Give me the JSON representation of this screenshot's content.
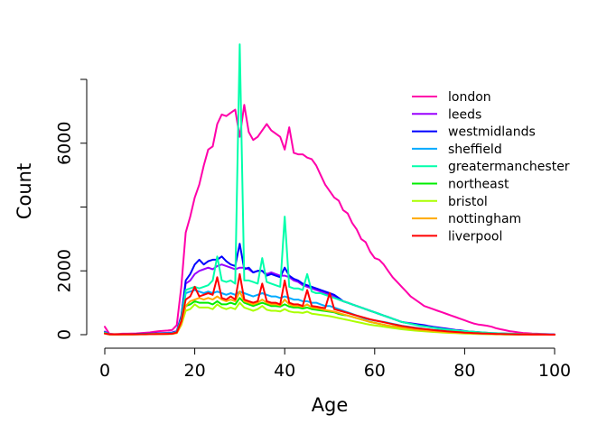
{
  "chart_data": {
    "type": "line",
    "xlabel": "Age",
    "ylabel": "Count",
    "xlim": [
      0,
      100
    ],
    "ylim": [
      0,
      8000
    ],
    "xticks": [
      0,
      20,
      40,
      60,
      80,
      100
    ],
    "yticks": [
      0,
      2000,
      4000,
      6000,
      8000
    ],
    "ytick_labels": [
      "0",
      "2000",
      "",
      "6000",
      ""
    ],
    "grid": false,
    "legend_position": "top-right",
    "x": [
      0,
      1,
      2,
      3,
      4,
      5,
      6,
      7,
      8,
      9,
      10,
      11,
      12,
      13,
      14,
      15,
      16,
      17,
      18,
      19,
      20,
      21,
      22,
      23,
      24,
      25,
      26,
      27,
      28,
      29,
      30,
      31,
      32,
      33,
      34,
      35,
      36,
      37,
      38,
      39,
      40,
      41,
      42,
      43,
      44,
      45,
      46,
      47,
      48,
      49,
      50,
      51,
      52,
      53,
      54,
      55,
      56,
      57,
      58,
      59,
      60,
      61,
      62,
      63,
      64,
      65,
      66,
      67,
      68,
      69,
      70,
      71,
      72,
      73,
      74,
      75,
      76,
      77,
      78,
      79,
      80,
      81,
      82,
      83,
      84,
      85,
      86,
      87,
      88,
      89,
      90,
      91,
      92,
      93,
      94,
      95,
      96,
      97,
      98,
      99,
      100
    ],
    "series": [
      {
        "name": "london",
        "color": "#ff00aa",
        "values": [
          250,
          30,
          20,
          25,
          30,
          30,
          35,
          40,
          50,
          60,
          70,
          90,
          110,
          120,
          130,
          150,
          300,
          1500,
          3200,
          3700,
          4300,
          4700,
          5300,
          5800,
          5900,
          6600,
          6900,
          6850,
          6950,
          7050,
          6200,
          7200,
          6350,
          6100,
          6200,
          6400,
          6600,
          6400,
          6300,
          6200,
          5800,
          6500,
          5700,
          5650,
          5650,
          5550,
          5500,
          5300,
          5000,
          4700,
          4500,
          4300,
          4200,
          3900,
          3800,
          3500,
          3300,
          3000,
          2900,
          2600,
          2400,
          2350,
          2200,
          2000,
          1800,
          1650,
          1500,
          1350,
          1200,
          1100,
          1000,
          900,
          850,
          800,
          750,
          700,
          650,
          600,
          550,
          500,
          450,
          400,
          350,
          320,
          300,
          280,
          250,
          200,
          170,
          140,
          110,
          90,
          70,
          55,
          45,
          35,
          30,
          25,
          20,
          15,
          10
        ]
      },
      {
        "name": "leeds",
        "color": "#9900ff",
        "values": [
          100,
          20,
          15,
          15,
          20,
          20,
          20,
          25,
          30,
          30,
          35,
          40,
          50,
          55,
          60,
          70,
          120,
          600,
          1600,
          1700,
          1900,
          2000,
          2050,
          2100,
          2050,
          2150,
          2200,
          2150,
          2100,
          2050,
          2100,
          2100,
          2050,
          1950,
          2000,
          2000,
          1900,
          1950,
          1900,
          1850,
          1850,
          1800,
          1700,
          1650,
          1550,
          1500,
          1450,
          1400,
          1350,
          1300,
          1250,
          1200,
          1100,
          1050,
          1000,
          950,
          900,
          850,
          800,
          750,
          700,
          650,
          600,
          550,
          500,
          450,
          400,
          380,
          360,
          340,
          320,
          300,
          270,
          250,
          230,
          210,
          190,
          170,
          150,
          140,
          120,
          100,
          90,
          80,
          70,
          60,
          50,
          45,
          40,
          35,
          30,
          25,
          20,
          15,
          12,
          10,
          8,
          6,
          5,
          4,
          3
        ]
      },
      {
        "name": "westmidlands",
        "color": "#0000ff",
        "values": [
          80,
          15,
          12,
          12,
          15,
          15,
          15,
          20,
          25,
          25,
          30,
          35,
          40,
          45,
          50,
          60,
          100,
          550,
          1700,
          1900,
          2200,
          2350,
          2200,
          2300,
          2350,
          2350,
          2450,
          2300,
          2200,
          2150,
          2850,
          2050,
          2100,
          1950,
          2000,
          2000,
          1850,
          1900,
          1850,
          1800,
          2100,
          1850,
          1750,
          1700,
          1600,
          1550,
          1500,
          1450,
          1400,
          1350,
          1300,
          1250,
          1150,
          1050,
          1000,
          950,
          900,
          850,
          800,
          750,
          700,
          650,
          600,
          550,
          500,
          450,
          400,
          370,
          350,
          330,
          310,
          290,
          260,
          240,
          220,
          200,
          180,
          160,
          140,
          130,
          110,
          95,
          85,
          75,
          65,
          55,
          45,
          40,
          35,
          30,
          25,
          20,
          16,
          12,
          10,
          8,
          6,
          5,
          4,
          3,
          2
        ]
      },
      {
        "name": "sheffield",
        "color": "#00aaff",
        "values": [
          60,
          12,
          10,
          10,
          12,
          12,
          12,
          15,
          18,
          18,
          20,
          25,
          30,
          35,
          40,
          45,
          80,
          450,
          1300,
          1350,
          1400,
          1350,
          1300,
          1350,
          1300,
          1350,
          1300,
          1250,
          1300,
          1250,
          1350,
          1300,
          1250,
          1200,
          1250,
          1300,
          1250,
          1200,
          1200,
          1150,
          1200,
          1150,
          1100,
          1100,
          1050,
          1050,
          1000,
          1000,
          950,
          900,
          900,
          850,
          800,
          750,
          700,
          650,
          600,
          550,
          500,
          470,
          450,
          420,
          400,
          370,
          340,
          310,
          280,
          260,
          240,
          220,
          200,
          180,
          165,
          150,
          140,
          130,
          120,
          110,
          100,
          90,
          80,
          70,
          60,
          55,
          50,
          45,
          40,
          35,
          30,
          25,
          20,
          15,
          12,
          10,
          8,
          6,
          5,
          4,
          3,
          2,
          1
        ]
      },
      {
        "name": "greatermanchester",
        "color": "#00ffaa",
        "values": [
          70,
          12,
          10,
          10,
          12,
          12,
          12,
          15,
          18,
          18,
          20,
          25,
          30,
          35,
          40,
          45,
          90,
          500,
          1400,
          1450,
          1500,
          1450,
          1500,
          1550,
          1700,
          2450,
          1700,
          1650,
          1700,
          1600,
          9100,
          1700,
          1700,
          1650,
          1600,
          2400,
          1650,
          1600,
          1550,
          1500,
          3700,
          1500,
          1450,
          1450,
          1400,
          1900,
          1350,
          1300,
          1300,
          1250,
          1200,
          1150,
          1100,
          1050,
          1000,
          950,
          900,
          850,
          800,
          750,
          700,
          650,
          600,
          550,
          500,
          450,
          400,
          370,
          340,
          310,
          280,
          260,
          240,
          220,
          200,
          180,
          165,
          150,
          135,
          120,
          110,
          100,
          90,
          80,
          70,
          60,
          50,
          45,
          40,
          35,
          30,
          25,
          20,
          15,
          12,
          10,
          8,
          6,
          5,
          4,
          3
        ]
      },
      {
        "name": "northeast",
        "color": "#00ee00",
        "values": [
          40,
          10,
          8,
          8,
          10,
          10,
          10,
          12,
          14,
          14,
          16,
          18,
          20,
          22,
          25,
          30,
          60,
          350,
          900,
          950,
          1050,
          1000,
          1000,
          1000,
          950,
          1050,
          950,
          950,
          1000,
          950,
          1150,
          1000,
          950,
          900,
          950,
          1000,
          950,
          900,
          900,
          880,
          950,
          880,
          850,
          850,
          820,
          850,
          800,
          780,
          760,
          740,
          720,
          700,
          650,
          620,
          600,
          560,
          520,
          480,
          440,
          400,
          370,
          340,
          310,
          280,
          260,
          240,
          220,
          200,
          180,
          165,
          150,
          135,
          120,
          110,
          100,
          90,
          80,
          72,
          65,
          58,
          50,
          45,
          40,
          35,
          30,
          25,
          22,
          18,
          15,
          12,
          10,
          8,
          6,
          5,
          4,
          3,
          2,
          2,
          1,
          1,
          1
        ]
      },
      {
        "name": "bristol",
        "color": "#aaff00",
        "values": [
          35,
          8,
          7,
          7,
          8,
          8,
          8,
          10,
          12,
          12,
          14,
          16,
          18,
          20,
          22,
          25,
          50,
          300,
          750,
          800,
          950,
          850,
          850,
          850,
          800,
          950,
          850,
          800,
          850,
          800,
          1000,
          850,
          800,
          750,
          800,
          900,
          780,
          750,
          750,
          730,
          800,
          730,
          700,
          700,
          680,
          720,
          660,
          640,
          620,
          600,
          580,
          550,
          520,
          490,
          460,
          430,
          400,
          370,
          340,
          310,
          290,
          270,
          250,
          230,
          210,
          190,
          170,
          155,
          140,
          128,
          115,
          105,
          95,
          85,
          75,
          68,
          60,
          54,
          48,
          42,
          36,
          32,
          28,
          24,
          20,
          17,
          14,
          12,
          10,
          8,
          6,
          5,
          4,
          3,
          2,
          2,
          1,
          1,
          1,
          1,
          1
        ]
      },
      {
        "name": "nottingham",
        "color": "#ffaa00",
        "values": [
          35,
          8,
          7,
          7,
          8,
          8,
          8,
          10,
          12,
          12,
          14,
          16,
          18,
          20,
          22,
          25,
          50,
          320,
          900,
          1050,
          1100,
          1150,
          1100,
          1150,
          1100,
          1200,
          1100,
          1050,
          1100,
          1050,
          1350,
          1050,
          1000,
          950,
          1000,
          1100,
          1000,
          950,
          950,
          920,
          1100,
          950,
          900,
          900,
          870,
          950,
          850,
          830,
          800,
          770,
          750,
          720,
          680,
          640,
          600,
          560,
          520,
          480,
          440,
          400,
          370,
          340,
          310,
          280,
          260,
          240,
          220,
          200,
          180,
          165,
          150,
          135,
          120,
          110,
          100,
          90,
          80,
          72,
          65,
          58,
          50,
          45,
          40,
          35,
          30,
          25,
          22,
          18,
          15,
          12,
          10,
          8,
          6,
          5,
          4,
          3,
          2,
          2,
          1,
          1,
          1
        ]
      },
      {
        "name": "liverpool",
        "color": "#ff0000",
        "values": [
          40,
          10,
          8,
          8,
          10,
          10,
          10,
          12,
          14,
          14,
          16,
          18,
          20,
          22,
          25,
          30,
          70,
          420,
          1100,
          1200,
          1500,
          1200,
          1250,
          1300,
          1250,
          1800,
          1150,
          1100,
          1200,
          1100,
          1900,
          1100,
          1050,
          1000,
          1050,
          1600,
          1050,
          1000,
          1000,
          950,
          1700,
          1000,
          950,
          950,
          900,
          1400,
          900,
          880,
          850,
          830,
          1300,
          800,
          760,
          720,
          680,
          640,
          600,
          560,
          520,
          480,
          450,
          420,
          390,
          360,
          330,
          300,
          270,
          250,
          230,
          210,
          190,
          175,
          160,
          145,
          130,
          118,
          106,
          96,
          86,
          76,
          66,
          58,
          50,
          44,
          38,
          33,
          28,
          24,
          20,
          16,
          13,
          10,
          8,
          6,
          5,
          4,
          3,
          2,
          2,
          1,
          1
        ]
      }
    ]
  }
}
